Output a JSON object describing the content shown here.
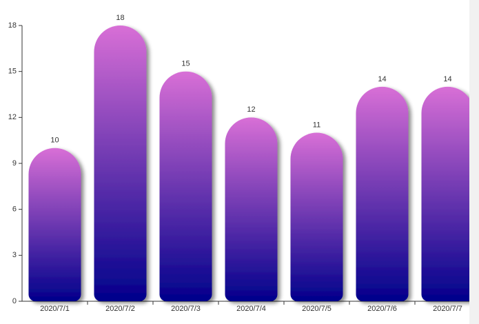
{
  "chart_data": {
    "type": "bar",
    "categories": [
      "2020/7/1",
      "2020/7/2",
      "2020/7/3",
      "2020/7/4",
      "2020/7/5",
      "2020/7/6",
      "2020/7/7"
    ],
    "values": [
      10,
      18,
      15,
      12,
      11,
      14,
      14
    ],
    "color": [
      "#d86fd6",
      "#00008b"
    ],
    "ylim": [
      0,
      18
    ],
    "yticks": [
      0,
      3,
      6,
      9,
      12,
      15,
      18
    ],
    "grid": false
  }
}
